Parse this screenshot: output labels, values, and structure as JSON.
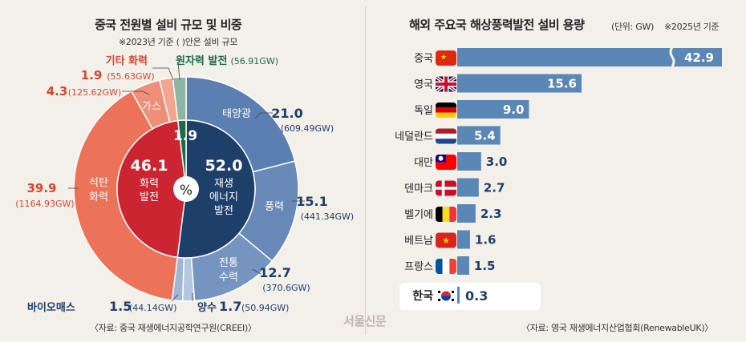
{
  "left": {
    "title": "중국 전원별 설비 규모 및 비중",
    "subtitle": "※2023년 기준  ( )안은 설비 규모",
    "center_symbol": "%",
    "source": "〈자료: 중국 재생에너지공학연구원(CREEI)〉"
  },
  "right": {
    "title": "해외 주요국 해상풍력발전 설비 용량",
    "unit_note": "(단위: GW)",
    "basis_note": "※2025년 기준",
    "source": "〈자료: 영국 재생에너지산업협회(RenewableUK)〉"
  },
  "watermark": "서울신문",
  "colors": {
    "thermal": "#cc2431",
    "renewable": "#1d3f6a",
    "nuclear": "#1d6b48",
    "coal": "#ec7359",
    "gas": "#ef8f77",
    "other_thermal": "#f2a58f",
    "nuclear_outer": "#8fb5a2",
    "solar": "#5b7fb0",
    "wind": "#6889b8",
    "hydro": "#7595c0",
    "bio": "#9fb6d4",
    "pumped": "#b5c7de",
    "bar": "#5a87b5",
    "highlight_bg": "#ffffff"
  },
  "chart_data": [
    {
      "type": "pie",
      "subtype": "nested-donut",
      "unit": "%",
      "inner": [
        {
          "name": "화력 발전",
          "value": 46.1
        },
        {
          "name": "재생 에너지 발전",
          "value": 52.0
        },
        {
          "name": "",
          "value": 1.9
        }
      ],
      "outer": [
        {
          "name": "석탄 화력",
          "value": 39.9,
          "capacity": "1164.93GW"
        },
        {
          "name": "가스",
          "value": 4.3,
          "capacity": "125.62GW"
        },
        {
          "name": "기타 화력",
          "value": 1.9,
          "capacity": "55.63GW"
        },
        {
          "name": "원자력 발전",
          "value": 1.9,
          "capacity": "56.91GW"
        },
        {
          "name": "태양광",
          "value": 21.0,
          "capacity": "609.49GW"
        },
        {
          "name": "풍력",
          "value": 15.1,
          "capacity": "441.34GW"
        },
        {
          "name": "전통 수력",
          "value": 12.7,
          "capacity": "370.6GW"
        },
        {
          "name": "양수",
          "value": 1.7,
          "capacity": "50.94GW"
        },
        {
          "name": "바이오매스",
          "value": 1.5,
          "capacity": "44.14GW"
        }
      ],
      "label_values": {
        "coal": "39.9",
        "coal_cap": "(1164.93GW)",
        "gas": "4.3",
        "gas_cap": "(125.62GW)",
        "other": "1.9",
        "other_cap": "(55.63GW)",
        "nuclear_cap": "(56.91GW)",
        "solar": "21.0",
        "solar_cap": "(609.49GW)",
        "wind": "15.1",
        "wind_cap": "(441.34GW)",
        "hydro": "12.7",
        "hydro_cap": "(370.6GW)",
        "pumped": "1.7",
        "pumped_cap": "(50.94GW)",
        "bio": "1.5",
        "bio_cap": "(44.14GW)",
        "thermal_total": "46.1",
        "renew_total": "52.0",
        "nuclear_total": "1.9"
      },
      "label_names": {
        "coal_l1": "석탄",
        "coal_l2": "화력",
        "gas": "가스",
        "other": "기타 화력",
        "nuclear": "원자력 발전",
        "solar": "태양광",
        "wind": "풍력",
        "hydro_l1": "전통",
        "hydro_l2": "수력",
        "pumped": "양수",
        "bio": "바이오매스",
        "thermal_l1": "화력",
        "thermal_l2": "발전",
        "renew_l1": "재생",
        "renew_l2": "에너지",
        "renew_l3": "발전"
      }
    },
    {
      "type": "bar",
      "orientation": "horizontal",
      "unit": "GW",
      "categories": [
        "중국",
        "영국",
        "독일",
        "네덜란드",
        "대만",
        "덴마크",
        "벨기에",
        "베트남",
        "프랑스",
        "한국"
      ],
      "values": [
        42.9,
        15.6,
        9.0,
        5.4,
        3.0,
        2.7,
        2.3,
        1.6,
        1.5,
        0.3
      ],
      "labels": [
        "42.9",
        "15.6",
        "9.0",
        "5.4",
        "3.0",
        "2.7",
        "2.3",
        "1.6",
        "1.5",
        "0.3"
      ],
      "axis_break": "중국",
      "highlight": "한국",
      "flags": [
        "china-flag-icon",
        "uk-flag-icon",
        "germany-flag-icon",
        "netherlands-flag-icon",
        "taiwan-flag-icon",
        "denmark-flag-icon",
        "belgium-flag-icon",
        "vietnam-flag-icon",
        "france-flag-icon",
        "korea-flag-icon"
      ]
    }
  ]
}
